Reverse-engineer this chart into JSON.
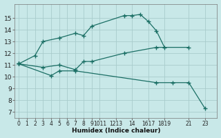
{
  "xlabel": "Humidex (Indice chaleur)",
  "background_color": "#c8e8e8",
  "grid_color": "#a8cccc",
  "line_color": "#1a6e64",
  "xlim": [
    -0.5,
    24.5
  ],
  "ylim": [
    6.5,
    16.2
  ],
  "ytick_positions": [
    7,
    8,
    9,
    10,
    11,
    12,
    13,
    14,
    15
  ],
  "ytick_labels": [
    "7",
    "8",
    "9",
    "10",
    "11",
    "12",
    "13",
    "14",
    "15"
  ],
  "xtick_positions": [
    0,
    1,
    2,
    3,
    4,
    5,
    6,
    7,
    8,
    9,
    10,
    12,
    14,
    16,
    18,
    21,
    23
  ],
  "xtick_labels": [
    "0",
    "1",
    "2",
    "3",
    "4",
    "5",
    "6",
    "7",
    "8",
    "9",
    "1011",
    "1213",
    "14",
    "1617",
    "1819",
    "21",
    "23"
  ],
  "lines": [
    {
      "x": [
        0,
        2,
        3,
        5,
        7,
        8,
        9,
        13,
        14,
        15,
        16,
        17,
        18
      ],
      "y": [
        11.1,
        11.8,
        13.0,
        13.3,
        13.7,
        13.5,
        14.3,
        15.2,
        15.2,
        15.3,
        14.7,
        13.9,
        12.5
      ]
    },
    {
      "x": [
        0,
        3,
        5,
        7,
        8,
        9,
        13,
        17,
        21
      ],
      "y": [
        11.1,
        10.8,
        11.0,
        10.6,
        11.3,
        11.3,
        12.0,
        12.5,
        12.5
      ]
    },
    {
      "x": [
        0,
        4,
        5,
        7,
        17,
        19,
        21,
        23
      ],
      "y": [
        11.1,
        10.1,
        10.5,
        10.5,
        9.5,
        9.5,
        9.5,
        7.3
      ]
    }
  ]
}
